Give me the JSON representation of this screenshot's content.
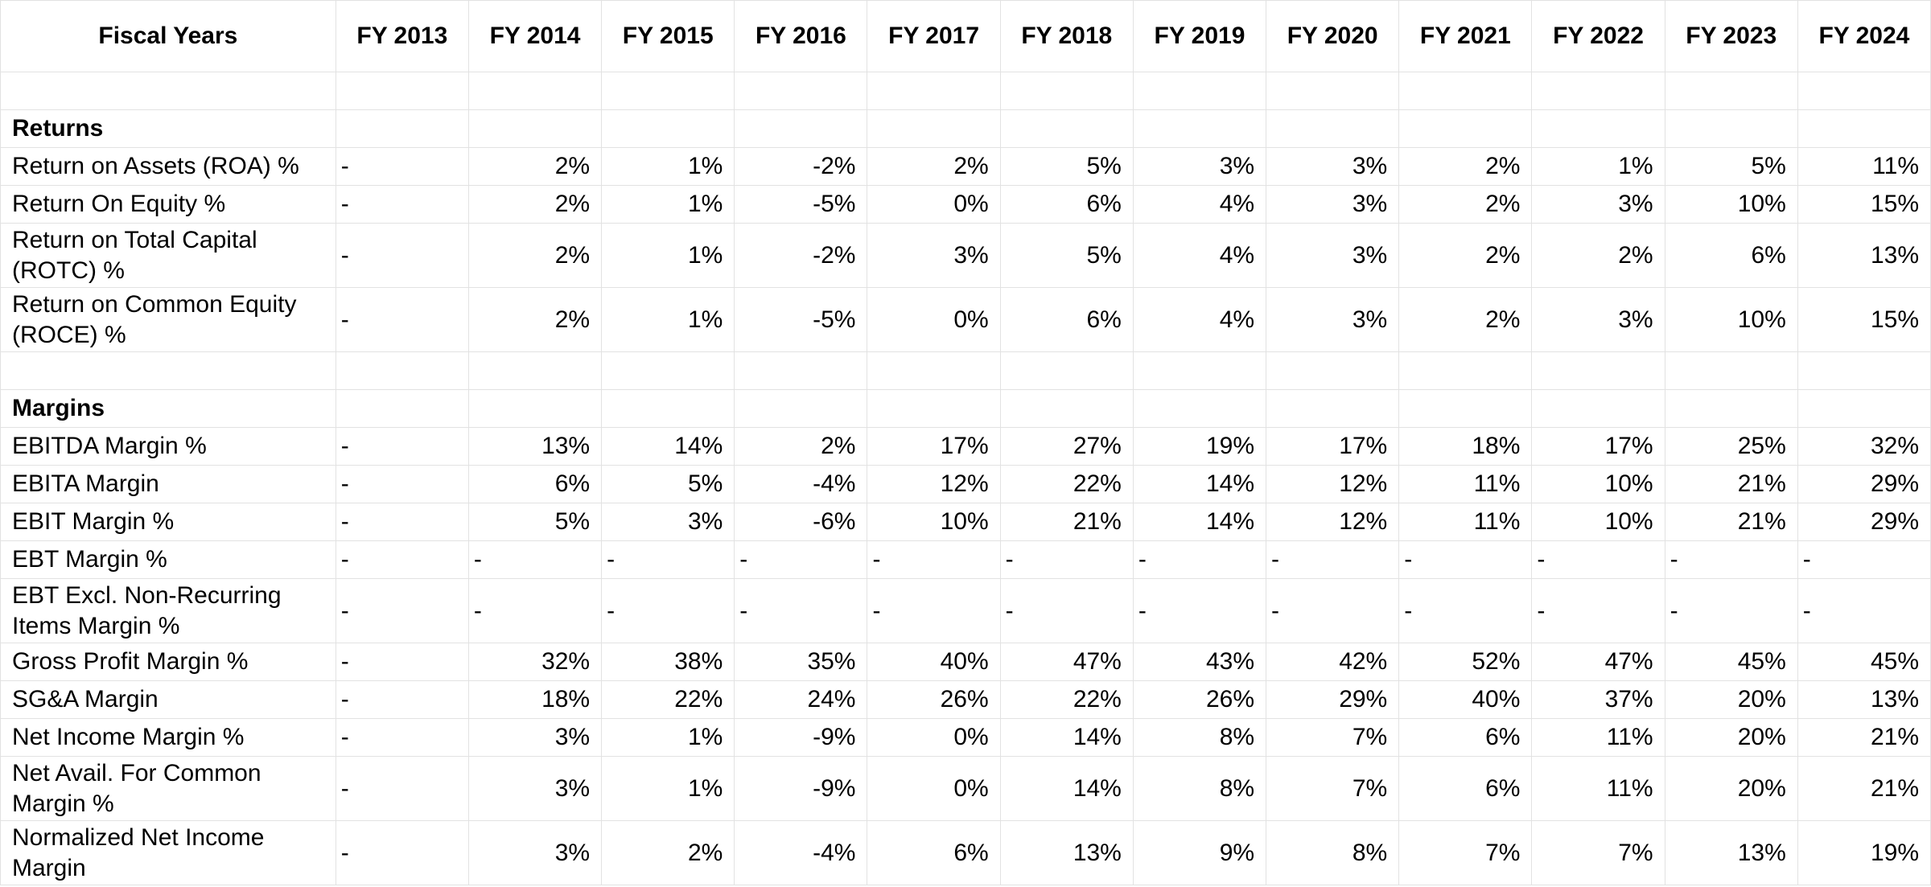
{
  "header": {
    "first_col": "Fiscal Years",
    "years": [
      "FY 2013",
      "FY 2014",
      "FY 2015",
      "FY 2016",
      "FY 2017",
      "FY 2018",
      "FY 2019",
      "FY 2020",
      "FY 2021",
      "FY 2022",
      "FY 2023",
      "FY 2024"
    ]
  },
  "sections": [
    {
      "title": "Returns",
      "rows": [
        {
          "label": "Return on Assets (ROA) %",
          "values": [
            "-",
            "2%",
            "1%",
            "-2%",
            "2%",
            "5%",
            "3%",
            "3%",
            "2%",
            "1%",
            "5%",
            "11%"
          ]
        },
        {
          "label": "Return On Equity %",
          "values": [
            "-",
            "2%",
            "1%",
            "-5%",
            "0%",
            "6%",
            "4%",
            "3%",
            "2%",
            "3%",
            "10%",
            "15%"
          ]
        },
        {
          "label": "Return on Total Capital (ROTC) %",
          "values": [
            "-",
            "2%",
            "1%",
            "-2%",
            "3%",
            "5%",
            "4%",
            "3%",
            "2%",
            "2%",
            "6%",
            "13%"
          ]
        },
        {
          "label": "Return on Common Equity (ROCE) %",
          "values": [
            "-",
            "2%",
            "1%",
            "-5%",
            "0%",
            "6%",
            "4%",
            "3%",
            "2%",
            "3%",
            "10%",
            "15%"
          ]
        }
      ]
    },
    {
      "title": "Margins",
      "rows": [
        {
          "label": "EBITDA Margin %",
          "values": [
            "-",
            "13%",
            "14%",
            "2%",
            "17%",
            "27%",
            "19%",
            "17%",
            "18%",
            "17%",
            "25%",
            "32%"
          ]
        },
        {
          "label": "EBITA Margin",
          "values": [
            "-",
            "6%",
            "5%",
            "-4%",
            "12%",
            "22%",
            "14%",
            "12%",
            "11%",
            "10%",
            "21%",
            "29%"
          ]
        },
        {
          "label": "EBIT Margin %",
          "values": [
            "-",
            "5%",
            "3%",
            "-6%",
            "10%",
            "21%",
            "14%",
            "12%",
            "11%",
            "10%",
            "21%",
            "29%"
          ]
        },
        {
          "label": "EBT Margin %",
          "values": [
            "-",
            "-",
            "-",
            "-",
            "-",
            "-",
            "-",
            "-",
            "-",
            "-",
            "-",
            "-"
          ]
        },
        {
          "label": "EBT Excl. Non-Recurring Items Margin %",
          "values": [
            "-",
            "-",
            "-",
            "-",
            "-",
            "-",
            "-",
            "-",
            "-",
            "-",
            "-",
            "-"
          ]
        },
        {
          "label": "Gross Profit Margin %",
          "values": [
            "-",
            "32%",
            "38%",
            "35%",
            "40%",
            "47%",
            "43%",
            "42%",
            "52%",
            "47%",
            "45%",
            "45%"
          ]
        },
        {
          "label": "SG&A Margin",
          "values": [
            "-",
            "18%",
            "22%",
            "24%",
            "26%",
            "22%",
            "26%",
            "29%",
            "40%",
            "37%",
            "20%",
            "13%"
          ]
        },
        {
          "label": "Net Income Margin %",
          "values": [
            "-",
            "3%",
            "1%",
            "-9%",
            "0%",
            "14%",
            "8%",
            "7%",
            "6%",
            "11%",
            "20%",
            "21%"
          ]
        },
        {
          "label": "Net Avail. For Common Margin %",
          "values": [
            "-",
            "3%",
            "1%",
            "-9%",
            "0%",
            "14%",
            "8%",
            "7%",
            "6%",
            "11%",
            "20%",
            "21%"
          ]
        },
        {
          "label": "Normalized Net Income Margin",
          "values": [
            "-",
            "3%",
            "2%",
            "-4%",
            "6%",
            "13%",
            "9%",
            "8%",
            "7%",
            "7%",
            "13%",
            "19%"
          ]
        }
      ]
    }
  ]
}
